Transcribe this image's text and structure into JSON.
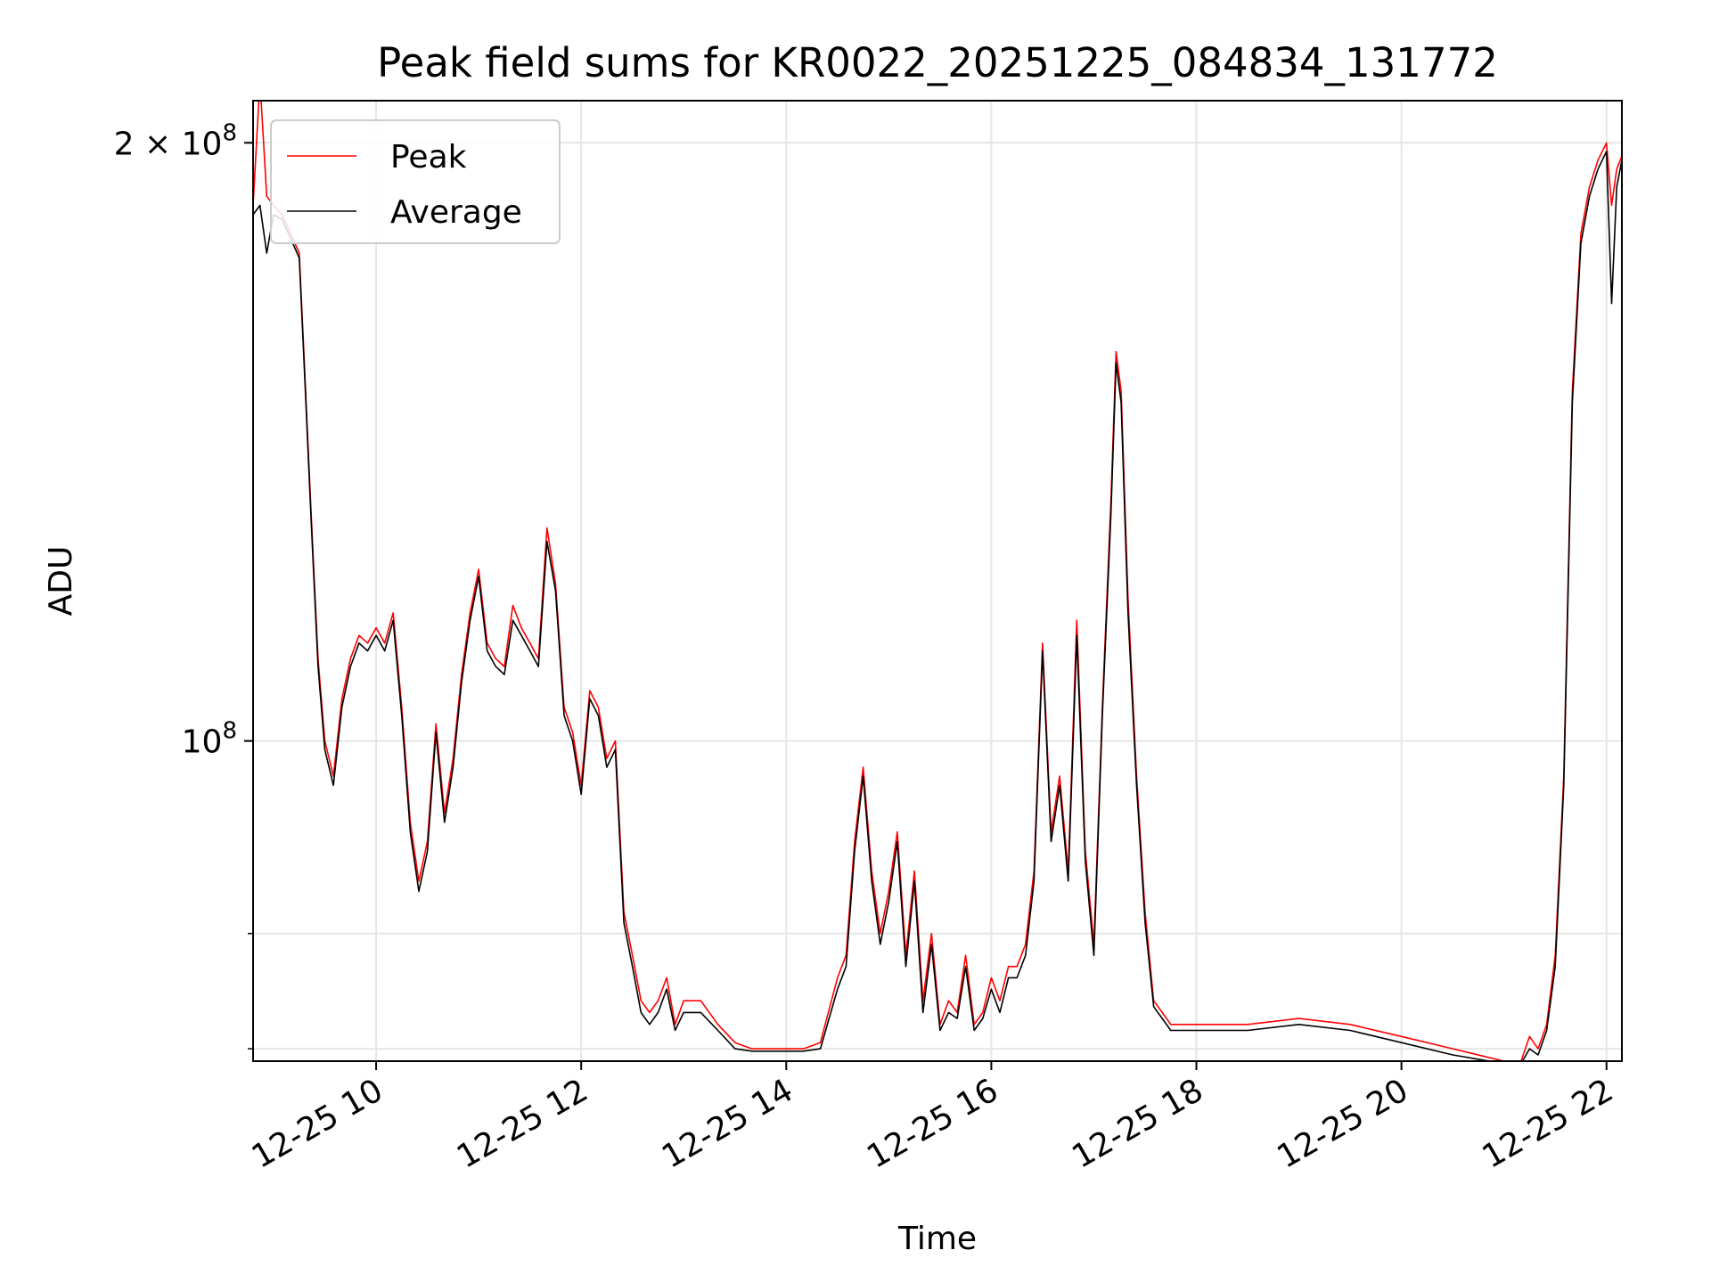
{
  "chart_data": {
    "type": "line",
    "title": "Peak field sums for KR0022_20251225_084834_131772",
    "xlabel": "Time",
    "ylabel": "ADU",
    "yscale": "log",
    "grid": true,
    "legend_placement": "top-left",
    "xlim": [
      "2025-12-25 08:48",
      "2025-12-25 22:09"
    ],
    "ylim": [
      69000000,
      210000000
    ],
    "x_ticks": [
      {
        "value": "2025-12-25 10:00",
        "label": "12-25 10"
      },
      {
        "value": "2025-12-25 12:00",
        "label": "12-25 12"
      },
      {
        "value": "2025-12-25 14:00",
        "label": "12-25 14"
      },
      {
        "value": "2025-12-25 16:00",
        "label": "12-25 16"
      },
      {
        "value": "2025-12-25 18:00",
        "label": "12-25 18"
      },
      {
        "value": "2025-12-25 20:00",
        "label": "12-25 20"
      },
      {
        "value": "2025-12-25 22:00",
        "label": "12-25 22"
      }
    ],
    "y_ticks": [
      {
        "value": 100000000,
        "label_base": "10",
        "label_exp": "8",
        "label_coef": ""
      },
      {
        "value": 200000000,
        "label_base": "10",
        "label_exp": "8",
        "label_coef": "2 × "
      }
    ],
    "y_minor_ticks": [
      70000000,
      80000000
    ],
    "x": [
      "2025-12-25 08:48",
      "2025-12-25 08:52",
      "2025-12-25 08:56",
      "2025-12-25 09:00",
      "2025-12-25 09:05",
      "2025-12-25 09:10",
      "2025-12-25 09:15",
      "2025-12-25 09:18",
      "2025-12-25 09:22",
      "2025-12-25 09:26",
      "2025-12-25 09:30",
      "2025-12-25 09:35",
      "2025-12-25 09:40",
      "2025-12-25 09:45",
      "2025-12-25 09:50",
      "2025-12-25 09:55",
      "2025-12-25 10:00",
      "2025-12-25 10:05",
      "2025-12-25 10:10",
      "2025-12-25 10:15",
      "2025-12-25 10:20",
      "2025-12-25 10:25",
      "2025-12-25 10:30",
      "2025-12-25 10:35",
      "2025-12-25 10:40",
      "2025-12-25 10:45",
      "2025-12-25 10:50",
      "2025-12-25 10:55",
      "2025-12-25 11:00",
      "2025-12-25 11:05",
      "2025-12-25 11:10",
      "2025-12-25 11:15",
      "2025-12-25 11:20",
      "2025-12-25 11:25",
      "2025-12-25 11:30",
      "2025-12-25 11:35",
      "2025-12-25 11:40",
      "2025-12-25 11:45",
      "2025-12-25 11:50",
      "2025-12-25 11:55",
      "2025-12-25 12:00",
      "2025-12-25 12:05",
      "2025-12-25 12:10",
      "2025-12-25 12:15",
      "2025-12-25 12:20",
      "2025-12-25 12:25",
      "2025-12-25 12:30",
      "2025-12-25 12:35",
      "2025-12-25 12:40",
      "2025-12-25 12:45",
      "2025-12-25 12:50",
      "2025-12-25 12:55",
      "2025-12-25 13:00",
      "2025-12-25 13:10",
      "2025-12-25 13:20",
      "2025-12-25 13:30",
      "2025-12-25 13:40",
      "2025-12-25 13:50",
      "2025-12-25 14:00",
      "2025-12-25 14:10",
      "2025-12-25 14:20",
      "2025-12-25 14:30",
      "2025-12-25 14:35",
      "2025-12-25 14:40",
      "2025-12-25 14:45",
      "2025-12-25 14:50",
      "2025-12-25 14:55",
      "2025-12-25 15:00",
      "2025-12-25 15:05",
      "2025-12-25 15:10",
      "2025-12-25 15:15",
      "2025-12-25 15:20",
      "2025-12-25 15:25",
      "2025-12-25 15:30",
      "2025-12-25 15:35",
      "2025-12-25 15:40",
      "2025-12-25 15:45",
      "2025-12-25 15:50",
      "2025-12-25 15:55",
      "2025-12-25 16:00",
      "2025-12-25 16:05",
      "2025-12-25 16:10",
      "2025-12-25 16:15",
      "2025-12-25 16:20",
      "2025-12-25 16:25",
      "2025-12-25 16:30",
      "2025-12-25 16:35",
      "2025-12-25 16:40",
      "2025-12-25 16:45",
      "2025-12-25 16:50",
      "2025-12-25 16:55",
      "2025-12-25 17:00",
      "2025-12-25 17:05",
      "2025-12-25 17:10",
      "2025-12-25 17:13",
      "2025-12-25 17:16",
      "2025-12-25 17:20",
      "2025-12-25 17:25",
      "2025-12-25 17:30",
      "2025-12-25 17:35",
      "2025-12-25 17:40",
      "2025-12-25 17:45",
      "2025-12-25 17:50",
      "2025-12-25 17:55",
      "2025-12-25 18:00",
      "2025-12-25 18:30",
      "2025-12-25 19:00",
      "2025-12-25 19:30",
      "2025-12-25 20:00",
      "2025-12-25 20:30",
      "2025-12-25 21:00",
      "2025-12-25 21:10",
      "2025-12-25 21:15",
      "2025-12-25 21:20",
      "2025-12-25 21:25",
      "2025-12-25 21:30",
      "2025-12-25 21:35",
      "2025-12-25 21:40",
      "2025-12-25 21:45",
      "2025-12-25 21:50",
      "2025-12-25 21:55",
      "2025-12-25 22:00",
      "2025-12-25 22:03",
      "2025-12-25 22:06",
      "2025-12-25 22:09"
    ],
    "series": [
      {
        "name": "Peak",
        "color": "#ff0000",
        "values": [
          186000000,
          215000000,
          188000000,
          186000000,
          184000000,
          180000000,
          176000000,
          155000000,
          130000000,
          110000000,
          100000000,
          96000000,
          105000000,
          110000000,
          113000000,
          112000000,
          114000000,
          112000000,
          116000000,
          104000000,
          91000000,
          85000000,
          89000000,
          102000000,
          92000000,
          98000000,
          108000000,
          116000000,
          122000000,
          112000000,
          110000000,
          109000000,
          117000000,
          114000000,
          112000000,
          110000000,
          128000000,
          120000000,
          104000000,
          101000000,
          95000000,
          106000000,
          104000000,
          98000000,
          100000000,
          82000000,
          78000000,
          74000000,
          73000000,
          74000000,
          76000000,
          72000000,
          74000000,
          74000000,
          72000000,
          70500000,
          70000000,
          70000000,
          70000000,
          70000000,
          70500000,
          76000000,
          78000000,
          89000000,
          97000000,
          86000000,
          80000000,
          84000000,
          90000000,
          78000000,
          86000000,
          74000000,
          80000000,
          72000000,
          74000000,
          73000000,
          78000000,
          72000000,
          73000000,
          76000000,
          74000000,
          77000000,
          77000000,
          79000000,
          86000000,
          112000000,
          90000000,
          96000000,
          86000000,
          115000000,
          88000000,
          79000000,
          104000000,
          132000000,
          157000000,
          150000000,
          118000000,
          96000000,
          82000000,
          74000000,
          73000000,
          72000000,
          72000000,
          72000000,
          72000000,
          72000000,
          72500000,
          72000000,
          71000000,
          70000000,
          69000000,
          69000000,
          71000000,
          70000000,
          72000000,
          78000000,
          96000000,
          150000000,
          180000000,
          190000000,
          196000000,
          200000000,
          186000000,
          194000000,
          197000000
        ]
      },
      {
        "name": "Average",
        "color": "#000000",
        "values": [
          184000000,
          186000000,
          176000000,
          184000000,
          183000000,
          179000000,
          175000000,
          154000000,
          129000000,
          109000000,
          99000000,
          95000000,
          104000000,
          109000000,
          112000000,
          111000000,
          113000000,
          111000000,
          115000000,
          103000000,
          90000000,
          84000000,
          88000000,
          101000000,
          91000000,
          97000000,
          107000000,
          115000000,
          121000000,
          111000000,
          109000000,
          108000000,
          115000000,
          113000000,
          111000000,
          109000000,
          126000000,
          119000000,
          103000000,
          100000000,
          94000000,
          105000000,
          103000000,
          97000000,
          99000000,
          81000000,
          77000000,
          73000000,
          72000000,
          73000000,
          75000000,
          71500000,
          73000000,
          73000000,
          71500000,
          70000000,
          69800000,
          69800000,
          69800000,
          69800000,
          70000000,
          75000000,
          77000000,
          88000000,
          96000000,
          85000000,
          79000000,
          83000000,
          89000000,
          77000000,
          85000000,
          73000000,
          79000000,
          71500000,
          73000000,
          72500000,
          77000000,
          71500000,
          72500000,
          75000000,
          73000000,
          76000000,
          76000000,
          78000000,
          85000000,
          111000000,
          89000000,
          95000000,
          85000000,
          113000000,
          87000000,
          78000000,
          103000000,
          130000000,
          155000000,
          148000000,
          116000000,
          95000000,
          81000000,
          73500000,
          72500000,
          71500000,
          71500000,
          71500000,
          71500000,
          71500000,
          72000000,
          71500000,
          70500000,
          69500000,
          68800000,
          68800000,
          70000000,
          69500000,
          71500000,
          77000000,
          95000000,
          148000000,
          178000000,
          188000000,
          194000000,
          198000000,
          166000000,
          190000000,
          196000000
        ]
      }
    ]
  }
}
